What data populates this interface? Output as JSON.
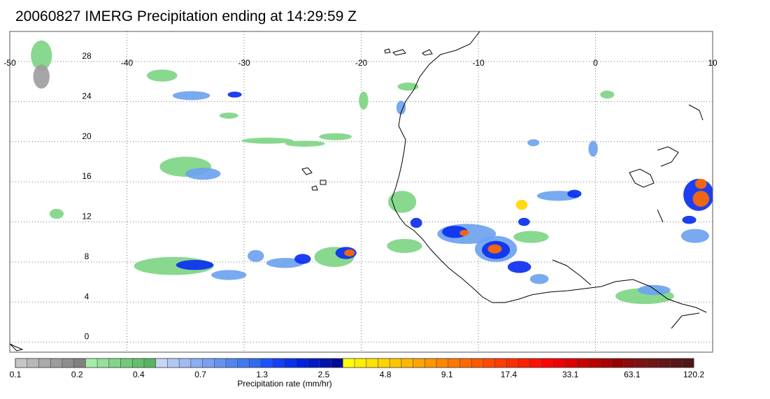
{
  "title": "20060827 IMERG Precipitation ending at 14:29:59 Z",
  "map": {
    "lon_range": [
      -50,
      10
    ],
    "lat_range": [
      -1,
      31
    ],
    "lon_ticks": [
      {
        "value": -50,
        "label": "-50"
      },
      {
        "value": -40,
        "label": "-40"
      },
      {
        "value": -30,
        "label": "-30"
      },
      {
        "value": -20,
        "label": "-20"
      },
      {
        "value": -10,
        "label": "-10"
      },
      {
        "value": 0,
        "label": "0"
      },
      {
        "value": 10,
        "label": "10"
      }
    ],
    "lat_ticks": [
      {
        "value": 0,
        "label": "0"
      },
      {
        "value": 4,
        "label": "4"
      },
      {
        "value": 8,
        "label": "8"
      },
      {
        "value": 12,
        "label": "12"
      },
      {
        "value": 16,
        "label": "16"
      },
      {
        "value": 20,
        "label": "20"
      },
      {
        "value": 24,
        "label": "24"
      },
      {
        "value": 28,
        "label": "28"
      }
    ],
    "grid": "dotted",
    "coastline_color": "#000000",
    "precip_cells": [
      {
        "lon": -47.3,
        "lat": 28.6,
        "rx": 0.9,
        "ry": 1.5,
        "level": 1
      },
      {
        "lon": -47.3,
        "lat": 26.5,
        "rx": 0.7,
        "ry": 1.2,
        "level": 0
      },
      {
        "lon": -34.5,
        "lat": 24.6,
        "rx": 1.6,
        "ry": 0.45,
        "level": 2
      },
      {
        "lon": -30.8,
        "lat": 24.7,
        "rx": 0.6,
        "ry": 0.3,
        "level": 3
      },
      {
        "lon": -37.0,
        "lat": 26.6,
        "rx": 1.3,
        "ry": 0.6,
        "level": 1
      },
      {
        "lon": -35.0,
        "lat": 17.5,
        "rx": 2.2,
        "ry": 1.0,
        "level": 1
      },
      {
        "lon": -33.5,
        "lat": 16.8,
        "rx": 1.5,
        "ry": 0.6,
        "level": 2
      },
      {
        "lon": -28.0,
        "lat": 20.1,
        "rx": 2.2,
        "ry": 0.3,
        "level": 1
      },
      {
        "lon": -24.8,
        "lat": 19.8,
        "rx": 1.7,
        "ry": 0.3,
        "level": 1
      },
      {
        "lon": -22.2,
        "lat": 20.5,
        "rx": 1.4,
        "ry": 0.35,
        "level": 1
      },
      {
        "lon": -31.3,
        "lat": 22.6,
        "rx": 0.8,
        "ry": 0.3,
        "level": 1
      },
      {
        "lon": -46.0,
        "lat": 12.8,
        "rx": 0.6,
        "ry": 0.5,
        "level": 1
      },
      {
        "lon": -36.0,
        "lat": 7.6,
        "rx": 3.4,
        "ry": 0.9,
        "level": 1
      },
      {
        "lon": -34.2,
        "lat": 7.7,
        "rx": 1.6,
        "ry": 0.5,
        "level": 3
      },
      {
        "lon": -31.3,
        "lat": 6.7,
        "rx": 1.5,
        "ry": 0.5,
        "level": 2
      },
      {
        "lon": -29.0,
        "lat": 8.6,
        "rx": 0.7,
        "ry": 0.6,
        "level": 2
      },
      {
        "lon": -26.5,
        "lat": 7.9,
        "rx": 1.6,
        "ry": 0.5,
        "level": 2
      },
      {
        "lon": -25.0,
        "lat": 8.3,
        "rx": 0.7,
        "ry": 0.5,
        "level": 3
      },
      {
        "lon": -22.3,
        "lat": 8.5,
        "rx": 1.7,
        "ry": 1.0,
        "level": 1
      },
      {
        "lon": -21.3,
        "lat": 8.9,
        "rx": 0.9,
        "ry": 0.6,
        "level": 3
      },
      {
        "lon": -21.0,
        "lat": 8.9,
        "rx": 0.45,
        "ry": 0.35,
        "level": 5
      },
      {
        "lon": -16.3,
        "lat": 9.6,
        "rx": 1.5,
        "ry": 0.7,
        "level": 1
      },
      {
        "lon": -16.5,
        "lat": 14.0,
        "rx": 1.2,
        "ry": 1.1,
        "level": 1
      },
      {
        "lon": -15.3,
        "lat": 11.9,
        "rx": 0.5,
        "ry": 0.5,
        "level": 3
      },
      {
        "lon": -11.0,
        "lat": 10.8,
        "rx": 2.5,
        "ry": 1.0,
        "level": 2
      },
      {
        "lon": -12.0,
        "lat": 11.0,
        "rx": 1.1,
        "ry": 0.6,
        "level": 3
      },
      {
        "lon": -11.2,
        "lat": 10.9,
        "rx": 0.4,
        "ry": 0.3,
        "level": 5
      },
      {
        "lon": -8.5,
        "lat": 9.3,
        "rx": 1.8,
        "ry": 1.3,
        "level": 2
      },
      {
        "lon": -8.5,
        "lat": 9.2,
        "rx": 1.2,
        "ry": 0.9,
        "level": 3
      },
      {
        "lon": -8.6,
        "lat": 9.3,
        "rx": 0.6,
        "ry": 0.45,
        "level": 5
      },
      {
        "lon": -6.5,
        "lat": 7.5,
        "rx": 1.0,
        "ry": 0.6,
        "level": 3
      },
      {
        "lon": -4.8,
        "lat": 6.3,
        "rx": 0.8,
        "ry": 0.5,
        "level": 2
      },
      {
        "lon": -5.5,
        "lat": 10.5,
        "rx": 1.5,
        "ry": 0.6,
        "level": 1
      },
      {
        "lon": -6.3,
        "lat": 13.7,
        "rx": 0.5,
        "ry": 0.5,
        "level": 4
      },
      {
        "lon": -6.1,
        "lat": 12.0,
        "rx": 0.5,
        "ry": 0.4,
        "level": 3
      },
      {
        "lon": -5.3,
        "lat": 19.9,
        "rx": 0.5,
        "ry": 0.35,
        "level": 2
      },
      {
        "lon": -3.2,
        "lat": 14.6,
        "rx": 1.8,
        "ry": 0.5,
        "level": 2
      },
      {
        "lon": -1.8,
        "lat": 14.8,
        "rx": 0.6,
        "ry": 0.4,
        "level": 3
      },
      {
        "lon": -0.2,
        "lat": 19.3,
        "rx": 0.4,
        "ry": 0.8,
        "level": 2
      },
      {
        "lon": 1.0,
        "lat": 24.7,
        "rx": 0.6,
        "ry": 0.4,
        "level": 1
      },
      {
        "lon": 4.2,
        "lat": 4.6,
        "rx": 2.5,
        "ry": 0.8,
        "level": 1
      },
      {
        "lon": 5.0,
        "lat": 5.2,
        "rx": 1.4,
        "ry": 0.5,
        "level": 2
      },
      {
        "lon": 8.8,
        "lat": 14.7,
        "rx": 1.3,
        "ry": 1.6,
        "level": 3
      },
      {
        "lon": 9.0,
        "lat": 14.3,
        "rx": 0.7,
        "ry": 0.8,
        "level": 5
      },
      {
        "lon": 9.0,
        "lat": 15.8,
        "rx": 0.5,
        "ry": 0.5,
        "level": 5
      },
      {
        "lon": 8.5,
        "lat": 10.6,
        "rx": 1.2,
        "ry": 0.7,
        "level": 2
      },
      {
        "lon": 8.0,
        "lat": 12.2,
        "rx": 0.6,
        "ry": 0.4,
        "level": 3
      },
      {
        "lon": -19.8,
        "lat": 24.1,
        "rx": 0.4,
        "ry": 0.9,
        "level": 1
      },
      {
        "lon": -16.6,
        "lat": 23.4,
        "rx": 0.4,
        "ry": 0.7,
        "level": 2
      },
      {
        "lon": -16.0,
        "lat": 25.5,
        "rx": 0.9,
        "ry": 0.4,
        "level": 1
      }
    ]
  },
  "colorbar": {
    "title": "Precipitation rate (mm/hr)",
    "colors": [
      "#c7c7c7",
      "#b8b8b8",
      "#aaaaaa",
      "#9c9c9c",
      "#8e8e8e",
      "#808080",
      "#a6ebaa",
      "#95e09a",
      "#84d58a",
      "#74ca7b",
      "#65bf6d",
      "#57b460",
      "#c6d4f5",
      "#b3c7f4",
      "#a0baf3",
      "#8dadf2",
      "#7aa0f1",
      "#6793f0",
      "#5486ef",
      "#4179ee",
      "#2e6ced",
      "#1e50ff",
      "#1440f5",
      "#0a30eb",
      "#0020e1",
      "#0018c8",
      "#0010b0",
      "#000898",
      "#ffff00",
      "#fff000",
      "#ffe200",
      "#ffd400",
      "#ffc600",
      "#ffb800",
      "#ffa500",
      "#ff9500",
      "#ff8600",
      "#ff7700",
      "#ff6800",
      "#ff5a00",
      "#ff4a00",
      "#ff3c00",
      "#ff2e00",
      "#ff2000",
      "#ff1200",
      "#ff0400",
      "#ee0000",
      "#dc0000",
      "#cb0000",
      "#ba0000",
      "#a90000",
      "#980000",
      "#8a0c0c",
      "#7d1212",
      "#701414",
      "#641515",
      "#5a1616",
      "#501717"
    ],
    "labels": [
      {
        "text": "0.1",
        "index": 0
      },
      {
        "text": "0.2",
        "index": 6
      },
      {
        "text": "0.4",
        "index": 12
      },
      {
        "text": "0.7",
        "index": 18
      },
      {
        "text": "1.3",
        "index": 24
      },
      {
        "text": "2.5",
        "index": 30
      },
      {
        "text": "4.8",
        "index": 36
      },
      {
        "text": "9.1",
        "index": 42
      },
      {
        "text": "17.4",
        "index": 48
      },
      {
        "text": "33.1",
        "index": 54
      },
      {
        "text": "63.1",
        "index": 60
      },
      {
        "text": "120.2",
        "index": 66
      }
    ]
  },
  "level_colors": [
    "#9e9e9e",
    "#7fd585",
    "#6ea3ef",
    "#0a2ff0",
    "#ffd700",
    "#ff6a00"
  ]
}
